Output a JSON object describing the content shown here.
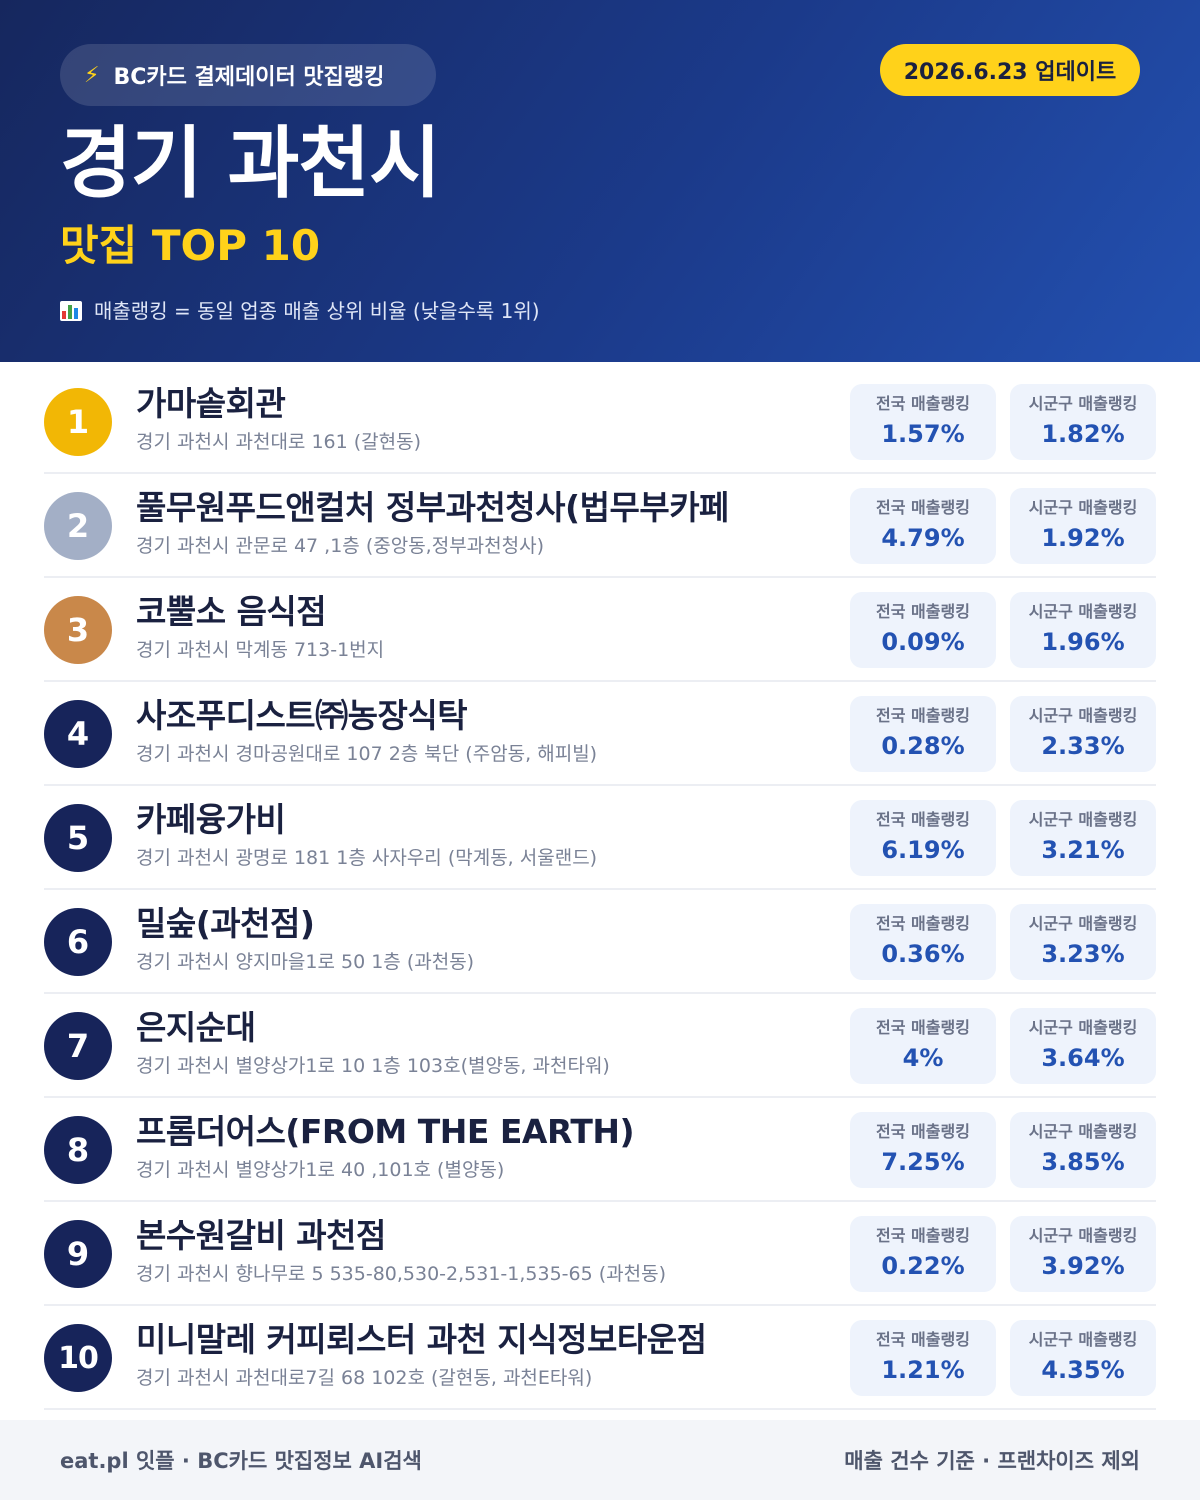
{
  "header": {
    "source_label": "BC카드 결제데이터 맛집랭킹",
    "update_label": "2026.6.23 업데이트",
    "title": "경기 과천시",
    "subtitle": "맛집 TOP 10",
    "note": "매출랭킹 = 동일 업종 매출 상위 비율 (낮을수록 1위)",
    "source_icon": "lightning-bolt-icon",
    "note_icon": "bar-chart-icon",
    "accent_color": "#ffd21a",
    "header_color": "#1b3a8a"
  },
  "stat_labels": {
    "national": "전국 매출랭킹",
    "local": "시군구 매출랭킹"
  },
  "restaurants": [
    {
      "rank": "1",
      "name": "가마솥회관",
      "address": "경기 과천시 과천대로 161 (갈현동)",
      "national": "1.57%",
      "local": "1.82%"
    },
    {
      "rank": "2",
      "name": "풀무원푸드앤컬처 정부과천청사(법무부카페",
      "address": "경기 과천시 관문로 47 ,1층 (중앙동,정부과천청사)",
      "national": "4.79%",
      "local": "1.92%"
    },
    {
      "rank": "3",
      "name": "코뿔소 음식점",
      "address": "경기 과천시 막계동 713-1번지",
      "national": "0.09%",
      "local": "1.96%"
    },
    {
      "rank": "4",
      "name": "사조푸디스트㈜농장식탁",
      "address": "경기 과천시 경마공원대로 107 2층 북단 (주암동, 해피빌)",
      "national": "0.28%",
      "local": "2.33%"
    },
    {
      "rank": "5",
      "name": "카페융가비",
      "address": "경기 과천시 광명로 181 1층 사자우리 (막계동, 서울랜드)",
      "national": "6.19%",
      "local": "3.21%"
    },
    {
      "rank": "6",
      "name": "밀숲(과천점)",
      "address": "경기 과천시 양지마을1로 50 1층 (과천동)",
      "national": "0.36%",
      "local": "3.23%"
    },
    {
      "rank": "7",
      "name": "은지순대",
      "address": "경기 과천시 별양상가1로 10 1층 103호(별양동, 과천타워)",
      "national": "4%",
      "local": "3.64%"
    },
    {
      "rank": "8",
      "name": "프롬더어스(FROM THE EARTH)",
      "address": "경기 과천시 별양상가1로 40 ,101호 (별양동)",
      "national": "7.25%",
      "local": "3.85%"
    },
    {
      "rank": "9",
      "name": "본수원갈비 과천점",
      "address": "경기 과천시 향나무로 5 535-80,530-2,531-1,535-65 (과천동)",
      "national": "0.22%",
      "local": "3.92%"
    },
    {
      "rank": "10",
      "name": "미니말레 커피뢰스터 과천 지식정보타운점",
      "address": "경기 과천시 과천대로7길 68 102호 (갈현동, 과천E타워)",
      "national": "1.21%",
      "local": "4.35%"
    }
  ],
  "footer": {
    "left": "eat.pl 잇플 · BC카드 맛집정보 AI검색",
    "right": "매출 건수 기준 · 프랜차이즈 제외"
  }
}
